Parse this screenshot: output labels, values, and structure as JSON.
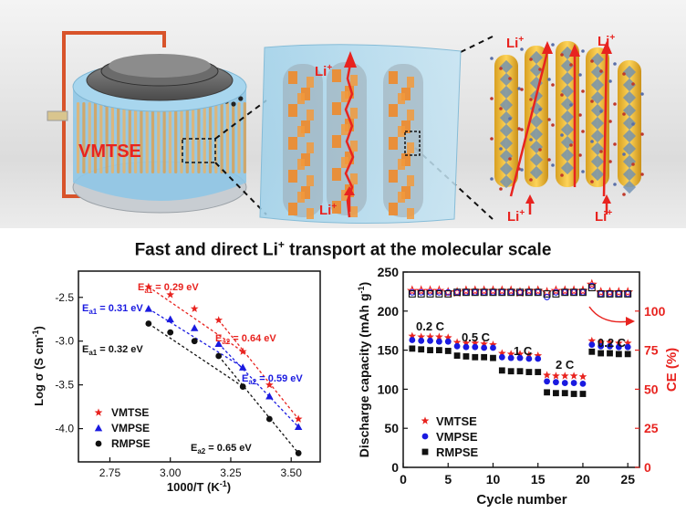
{
  "banner": {
    "text_before": "Fast and direct Li",
    "text_sup": "+",
    "text_after": " transport at the molecular scale"
  },
  "illustration": {
    "cell_label": "VMTSE",
    "ion_label": "Li",
    "ion_charge": "+"
  },
  "chart_data": [
    {
      "type": "scatter",
      "title": "",
      "xlabel": "1000/T (K",
      "xlabel_sup": "-1",
      "xlabel_end": ")",
      "ylabel": "Log σ (S cm",
      "ylabel_sup": "-1",
      "ylabel_end": ")",
      "xlim": [
        2.62,
        3.62
      ],
      "ylim": [
        -4.38,
        -2.2
      ],
      "xticks": [
        "2.75",
        "3.00",
        "3.25",
        "3.50"
      ],
      "yticks": [
        "-2.5",
        "-3.0",
        "-3.5",
        "-4.0"
      ],
      "legend_position": "bottom-left",
      "series": [
        {
          "name": "VMTSE",
          "color": "#e8231f",
          "marker": "star",
          "x": [
            2.91,
            3.0,
            3.1,
            3.2,
            3.3,
            3.41,
            3.53
          ],
          "y": [
            -2.38,
            -2.47,
            -2.63,
            -2.76,
            -3.12,
            -3.5,
            -3.89
          ]
        },
        {
          "name": "VMPSE",
          "color": "#1a1ae0",
          "marker": "triangle",
          "x": [
            2.91,
            3.0,
            3.1,
            3.2,
            3.3,
            3.41,
            3.53
          ],
          "y": [
            -2.63,
            -2.75,
            -2.85,
            -3.03,
            -3.3,
            -3.63,
            -3.98
          ]
        },
        {
          "name": "RMPSE",
          "color": "#111111",
          "marker": "circle",
          "x": [
            2.91,
            3.0,
            3.1,
            3.2,
            3.3,
            3.41,
            3.53
          ],
          "y": [
            -2.8,
            -2.9,
            -3.0,
            -3.17,
            -3.52,
            -3.89,
            -4.28
          ]
        }
      ],
      "annotations": [
        {
          "label": "E",
          "sub": "a1",
          "value": " = 0.29 eV",
          "color": "#e8231f"
        },
        {
          "label": "E",
          "sub": "a1",
          "value": " = 0.31 eV",
          "color": "#1a1ae0"
        },
        {
          "label": "E",
          "sub": "a1",
          "value": " = 0.32 eV",
          "color": "#111111"
        },
        {
          "label": "E",
          "sub": "a2",
          "value": " = 0.64 eV",
          "color": "#e8231f"
        },
        {
          "label": "E",
          "sub": "a2",
          "value": " = 0.59 eV",
          "color": "#1a1ae0"
        },
        {
          "label": "E",
          "sub": "a2",
          "value": " = 0.65 eV",
          "color": "#111111"
        }
      ]
    },
    {
      "type": "scatter",
      "title": "",
      "xlabel": "Cycle number",
      "ylabel": "Discharge capacity (mAh g",
      "ylabel_sup": "-1",
      "ylabel_end": ")",
      "y2label": "CE (%)",
      "xlim": [
        0,
        26.3
      ],
      "ylim": [
        0,
        250
      ],
      "y2lim": [
        0,
        125
      ],
      "xticks": [
        "0",
        "5",
        "10",
        "15",
        "20",
        "25"
      ],
      "yticks": [
        "0",
        "50",
        "100",
        "150",
        "200",
        "250"
      ],
      "y2ticks": [
        "0",
        "25",
        "50",
        "75",
        "100"
      ],
      "legend_position": "bottom-left",
      "rate_labels": [
        "0.2 C",
        "0.5 C",
        "1 C",
        "2 C",
        "0.2 C"
      ],
      "x": [
        1,
        2,
        3,
        4,
        5,
        6,
        7,
        8,
        9,
        10,
        11,
        12,
        13,
        14,
        15,
        16,
        17,
        18,
        19,
        20,
        21,
        22,
        23,
        24,
        25
      ],
      "series": [
        {
          "name": "VMTSE",
          "color": "#e8231f",
          "marker": "star",
          "values": [
            168,
            167,
            167,
            167,
            166,
            160,
            159,
            159,
            158,
            157,
            146,
            145,
            145,
            144,
            143,
            118,
            117,
            117,
            117,
            116,
            162,
            160,
            160,
            159,
            159
          ]
        },
        {
          "name": "VMPSE",
          "color": "#1a1ae0",
          "marker": "circle",
          "values": [
            163,
            162,
            162,
            161,
            161,
            155,
            154,
            154,
            153,
            153,
            141,
            140,
            140,
            139,
            139,
            110,
            109,
            108,
            108,
            107,
            157,
            155,
            155,
            154,
            154
          ]
        },
        {
          "name": "RMPSE",
          "color": "#111111",
          "marker": "square",
          "values": [
            152,
            151,
            150,
            150,
            149,
            143,
            142,
            141,
            141,
            140,
            124,
            123,
            123,
            122,
            122,
            96,
            95,
            95,
            94,
            94,
            148,
            146,
            146,
            145,
            145
          ]
        },
        {
          "name": "CE",
          "color": "#e8231f",
          "marker": "star-open",
          "axis": "y2",
          "values": [
            113,
            113,
            113,
            113,
            112,
            112,
            113,
            113,
            113,
            113,
            113,
            113,
            112,
            113,
            113,
            112,
            113,
            113,
            113,
            113,
            117,
            112,
            112,
            112,
            112
          ]
        },
        {
          "name": "CE",
          "color": "#1a1ae0",
          "marker": "circle-open",
          "axis": "y2",
          "values": [
            112,
            112,
            112,
            112,
            112,
            112,
            112,
            112,
            112,
            112,
            112,
            112,
            112,
            112,
            112,
            109,
            112,
            112,
            112,
            112,
            116,
            111,
            111,
            111,
            111
          ]
        },
        {
          "name": "CE",
          "color": "#111111",
          "marker": "square-open",
          "axis": "y2",
          "values": [
            111,
            111,
            111,
            111,
            111,
            112,
            112,
            112,
            112,
            112,
            112,
            112,
            112,
            112,
            112,
            111,
            111,
            112,
            112,
            112,
            115,
            111,
            111,
            111,
            111
          ]
        }
      ]
    }
  ]
}
